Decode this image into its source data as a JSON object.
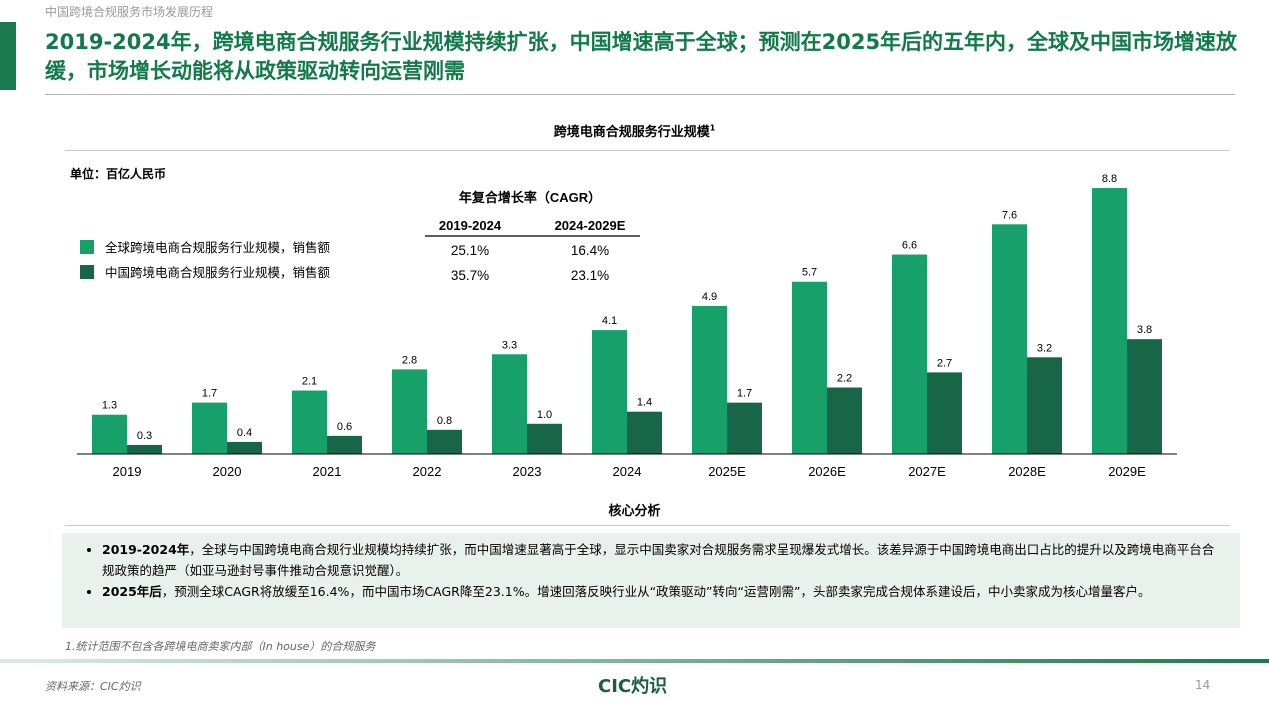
{
  "header": {
    "breadcrumb": "中国跨境合规服务市场发展历程",
    "title": "2019-2024年，跨境电商合规服务行业规模持续扩张，中国增速高于全球；预测在2025年后的五年内，全球及中国市场增速放缓，市场增长动能将从政策驱动转向运营刚需"
  },
  "chart_data": {
    "type": "bar",
    "title": "跨境电商合规服务行业规模",
    "title_sup": "1",
    "unit": "单位：百亿人民币",
    "categories": [
      "2019",
      "2020",
      "2021",
      "2022",
      "2023",
      "2024",
      "2025E",
      "2026E",
      "2027E",
      "2028E",
      "2029E"
    ],
    "series": [
      {
        "name": "全球跨境电商合规服务行业规模，销售额",
        "color": "#17a06a",
        "values": [
          1.3,
          1.7,
          2.1,
          2.8,
          3.3,
          4.1,
          4.9,
          5.7,
          6.6,
          7.6,
          8.8
        ],
        "labels": [
          "1.3",
          "1.7",
          "2.1",
          "2.8",
          "3.3",
          "4.1",
          "4.9",
          "5.7",
          "6.6",
          "7.6",
          "8.8"
        ]
      },
      {
        "name": "中国跨境电商合规服务行业规模，销售额",
        "color": "#176647",
        "values": [
          0.3,
          0.4,
          0.6,
          0.8,
          1.0,
          1.4,
          1.7,
          2.2,
          2.7,
          3.2,
          3.8
        ],
        "labels": [
          "0.3",
          "0.4",
          "0.6",
          "0.8",
          "1.0",
          "1.4",
          "1.7",
          "2.2",
          "2.7",
          "3.2",
          "3.8"
        ]
      }
    ],
    "ylim": [
      0,
      9
    ],
    "grid": false,
    "legend_position": "top-left",
    "cagr": {
      "title": "年复合增长率（CAGR）",
      "columns": [
        "2019-2024",
        "2024-2029E"
      ],
      "rows": [
        [
          "25.1%",
          "16.4%"
        ],
        [
          "35.7%",
          "23.1%"
        ]
      ]
    }
  },
  "analysis": {
    "heading": "核心分析",
    "bullets": [
      {
        "bold": "2019-2024年",
        "text": "，全球与中国跨境电商合规行业规模均持续扩张，而中国增速显著高于全球，显示中国卖家对合规服务需求呈现爆发式增长。该差异源于中国跨境电商出口占比的提升以及跨境电商平台合规政策的趋严（如亚马逊封号事件推动合规意识觉醒）。"
      },
      {
        "bold": "2025年后",
        "text": "，预测全球CAGR将放缓至16.4%，而中国市场CAGR降至23.1%。增速回落反映行业从“政策驱动”转向“运营刚需”，头部卖家完成合规体系建设后，中小卖家成为核心增量客户。"
      }
    ]
  },
  "footer": {
    "footnote": "1.统计范围不包含各跨境电商卖家内部（In house）的合规服务",
    "source": "资料来源：CIC灼识",
    "logo": "CIC灼识",
    "page_number": "14"
  }
}
